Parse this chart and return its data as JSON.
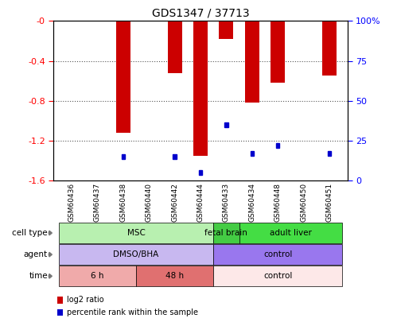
{
  "title": "GDS1347 / 37713",
  "samples": [
    "GSM60436",
    "GSM60437",
    "GSM60438",
    "GSM60440",
    "GSM60442",
    "GSM60444",
    "GSM60433",
    "GSM60434",
    "GSM60448",
    "GSM60450",
    "GSM60451"
  ],
  "log2_ratio": [
    0.0,
    0.0,
    -1.12,
    0.0,
    -0.52,
    -1.35,
    -0.18,
    -0.82,
    -0.62,
    0.0,
    -0.55
  ],
  "percentile_rank": [
    2,
    2,
    15,
    2,
    15,
    5,
    35,
    17,
    22,
    2,
    17
  ],
  "cell_type_groups": [
    {
      "label": "MSC",
      "start": 0,
      "end": 6,
      "color": "#b8f0b0"
    },
    {
      "label": "fetal brain",
      "start": 6,
      "end": 7,
      "color": "#44cc44"
    },
    {
      "label": "adult liver",
      "start": 7,
      "end": 11,
      "color": "#44dd44"
    }
  ],
  "agent_groups": [
    {
      "label": "DMSO/BHA",
      "start": 0,
      "end": 6,
      "color": "#c8b8f0"
    },
    {
      "label": "control",
      "start": 6,
      "end": 11,
      "color": "#9977ee"
    }
  ],
  "time_groups": [
    {
      "label": "6 h",
      "start": 0,
      "end": 3,
      "color": "#f0aaaa"
    },
    {
      "label": "48 h",
      "start": 3,
      "end": 6,
      "color": "#e07070"
    },
    {
      "label": "control",
      "start": 6,
      "end": 11,
      "color": "#fde8e8"
    }
  ],
  "ylim_left": [
    -1.6,
    0
  ],
  "ylim_right": [
    0,
    100
  ],
  "bar_color": "#cc0000",
  "blue_color": "#0000cc",
  "row_labels": [
    "cell type",
    "agent",
    "time"
  ],
  "legend_items": [
    {
      "color": "#cc0000",
      "label": "log2 ratio"
    },
    {
      "color": "#0000cc",
      "label": "percentile rank within the sample"
    }
  ]
}
